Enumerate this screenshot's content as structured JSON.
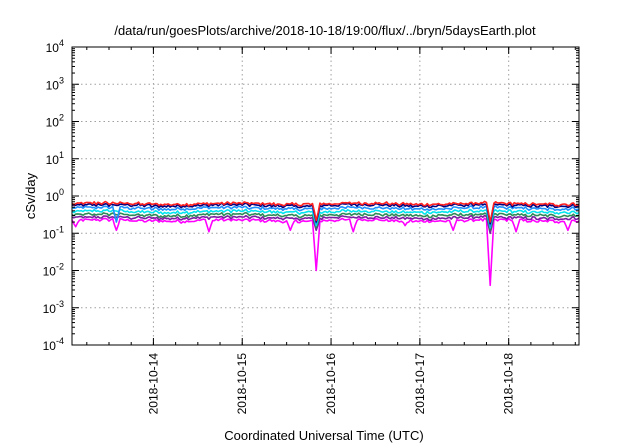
{
  "chart_data": {
    "type": "line",
    "title": "/data/run/goesPlots/archive/2018-10-18/19:00/flux/../bryn/5daysEarth.plot",
    "xlabel": "Coordinated Universal Time (UTC)",
    "ylabel": "cSv/day",
    "yscale": "log",
    "ylim": [
      0.0001,
      10000
    ],
    "xlim": [
      "2018-10-13T02:00",
      "2018-10-18T19:00"
    ],
    "grid": true,
    "y_ticks": [
      {
        "base": "10",
        "exp": "-4",
        "value": 0.0001
      },
      {
        "base": "10",
        "exp": "-3",
        "value": 0.001
      },
      {
        "base": "10",
        "exp": "-2",
        "value": 0.01
      },
      {
        "base": "10",
        "exp": "-1",
        "value": 0.1
      },
      {
        "base": "10",
        "exp": "0",
        "value": 1
      },
      {
        "base": "10",
        "exp": "1",
        "value": 10
      },
      {
        "base": "10",
        "exp": "2",
        "value": 100
      },
      {
        "base": "10",
        "exp": "3",
        "value": 1000
      },
      {
        "base": "10",
        "exp": "4",
        "value": 10000
      }
    ],
    "x_ticks": [
      {
        "label": "2018-10-14",
        "value": "2018-10-14T00:00"
      },
      {
        "label": "2018-10-15",
        "value": "2018-10-15T00:00"
      },
      {
        "label": "2018-10-16",
        "value": "2018-10-16T00:00"
      },
      {
        "label": "2018-10-17",
        "value": "2018-10-17T00:00"
      },
      {
        "label": "2018-10-18",
        "value": "2018-10-18T00:00"
      }
    ],
    "series": [
      {
        "color": "#ff00ff",
        "base": 0.22,
        "dips": [
          [
            "2018-10-13T03:00",
            0.15
          ],
          [
            "2018-10-13T14:00",
            0.12
          ],
          [
            "2018-10-14T15:00",
            0.11
          ],
          [
            "2018-10-15T13:00",
            0.12
          ],
          [
            "2018-10-15T20:00",
            0.01
          ],
          [
            "2018-10-16T06:00",
            0.11
          ],
          [
            "2018-10-16T20:00",
            0.16
          ],
          [
            "2018-10-17T09:00",
            0.12
          ],
          [
            "2018-10-17T19:00",
            0.004
          ],
          [
            "2018-10-18T02:00",
            0.11
          ],
          [
            "2018-10-18T16:00",
            0.12
          ]
        ]
      },
      {
        "color": "#7a1fa2",
        "base": 0.26,
        "dips": [
          [
            "2018-10-15T20:00",
            0.12
          ],
          [
            "2018-10-17T19:00",
            0.1
          ]
        ]
      },
      {
        "color": "#2e8b57",
        "base": 0.31,
        "dips": [
          [
            "2018-10-15T20:00",
            0.14
          ],
          [
            "2018-10-17T19:00",
            0.12
          ]
        ]
      },
      {
        "color": "#00e5ee",
        "base": 0.38,
        "dips": [
          [
            "2018-10-15T20:00",
            0.16
          ],
          [
            "2018-10-17T19:00",
            0.14
          ]
        ]
      },
      {
        "color": "#1e90ff",
        "base": 0.47,
        "dips": [
          [
            "2018-10-13T14:00",
            0.2
          ],
          [
            "2018-10-15T20:00",
            0.18
          ],
          [
            "2018-10-17T19:00",
            0.15
          ]
        ]
      },
      {
        "color": "#000080",
        "base": 0.56,
        "dips": [
          [
            "2018-10-15T20:00",
            0.2
          ],
          [
            "2018-10-17T19:00",
            0.18
          ]
        ]
      },
      {
        "color": "#ff2020",
        "base": 0.62,
        "dips": [
          [
            "2018-10-15T20:00",
            0.22
          ],
          [
            "2018-10-17T19:00",
            0.2
          ]
        ]
      }
    ]
  }
}
